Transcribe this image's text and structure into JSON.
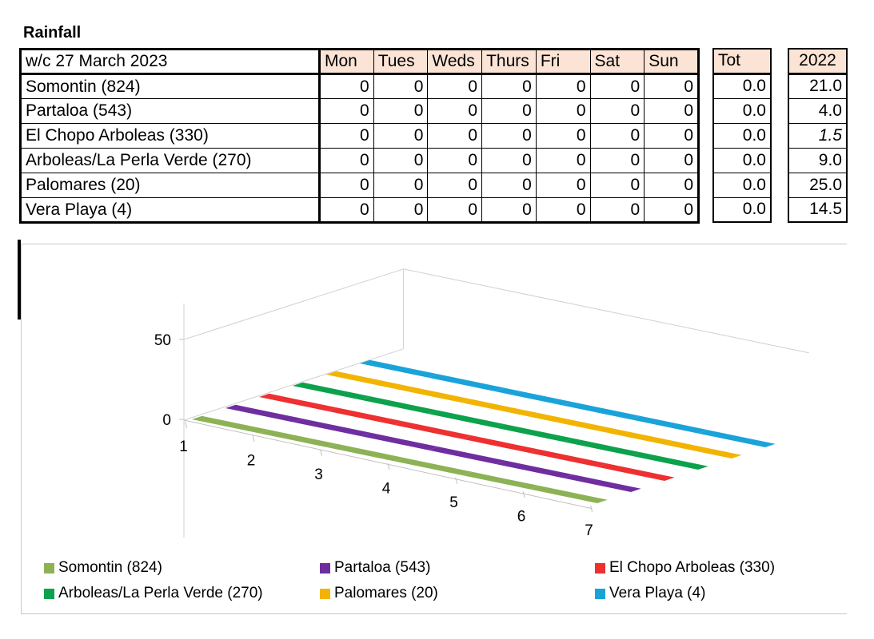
{
  "title": "Rainfall",
  "table": {
    "week_label": "w/c 27 March 2023",
    "day_headers": [
      "Mon",
      "Tues",
      "Weds",
      "Thurs",
      "Fri",
      "Sat",
      "Sun"
    ],
    "tot_header": "Tot",
    "year_header": "2022",
    "rows": [
      {
        "station": "Somontin (824)",
        "days": [
          "0",
          "0",
          "0",
          "0",
          "0",
          "0",
          "0"
        ],
        "tot": "0.0",
        "year": "21.0"
      },
      {
        "station": "Partaloa (543)",
        "days": [
          "0",
          "0",
          "0",
          "0",
          "0",
          "0",
          "0"
        ],
        "tot": "0.0",
        "year": "4.0"
      },
      {
        "station": "El Chopo Arboleas (330)",
        "days": [
          "0",
          "0",
          "0",
          "0",
          "0",
          "0",
          "0"
        ],
        "tot": "0.0",
        "year": "1.5"
      },
      {
        "station": "Arboleas/La Perla Verde (270)",
        "days": [
          "0",
          "0",
          "0",
          "0",
          "0",
          "0",
          "0"
        ],
        "tot": "0.0",
        "year": "9.0"
      },
      {
        "station": "Palomares (20)",
        "days": [
          "0",
          "0",
          "0",
          "0",
          "0",
          "0",
          "0"
        ],
        "tot": "0.0",
        "year": "25.0"
      },
      {
        "station": "Vera Playa (4)",
        "days": [
          "0",
          "0",
          "0",
          "0",
          "0",
          "0",
          "0"
        ],
        "tot": "0.0",
        "year": "14.5"
      }
    ]
  },
  "chart_data": {
    "type": "line",
    "view": "3d",
    "title": "",
    "xlabel": "",
    "ylabel": "",
    "x": [
      1,
      2,
      3,
      4,
      5,
      6,
      7
    ],
    "y_ticks": [
      0,
      50
    ],
    "ylim": [
      0,
      50
    ],
    "legend_position": "bottom",
    "series": [
      {
        "name": "Somontin (824)",
        "color": "#8db255",
        "values": [
          0,
          0,
          0,
          0,
          0,
          0,
          0
        ]
      },
      {
        "name": "Partaloa (543)",
        "color": "#6f2ea0",
        "values": [
          0,
          0,
          0,
          0,
          0,
          0,
          0
        ]
      },
      {
        "name": "El Chopo Arboleas (330)",
        "color": "#ee3030",
        "values": [
          0,
          0,
          0,
          0,
          0,
          0,
          0
        ]
      },
      {
        "name": "Arboleas/La Perla Verde (270)",
        "color": "#0ca24c",
        "values": [
          0,
          0,
          0,
          0,
          0,
          0,
          0
        ]
      },
      {
        "name": "Palomares (20)",
        "color": "#f2b400",
        "values": [
          0,
          0,
          0,
          0,
          0,
          0,
          0
        ]
      },
      {
        "name": "Vera Playa (4)",
        "color": "#1aa3d9",
        "values": [
          0,
          0,
          0,
          0,
          0,
          0,
          0
        ]
      }
    ]
  }
}
